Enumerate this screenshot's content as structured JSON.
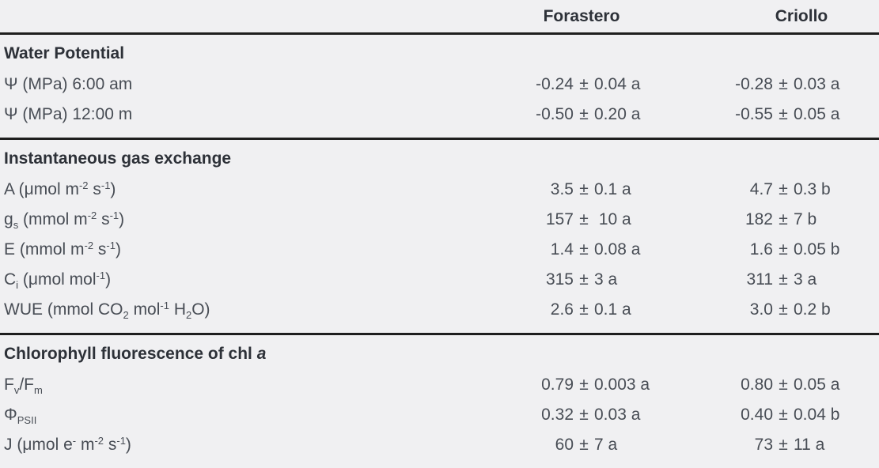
{
  "meta": {
    "pm": "±"
  },
  "colors": {
    "background": "#f0f0f2",
    "text": "#484d55",
    "heading": "#2d3138",
    "rule": "#1e1e1e"
  },
  "table": {
    "columns": [
      "",
      "Forastero",
      "Criollo"
    ],
    "sections": [
      {
        "title": [
          {
            "t": "Water Potential"
          }
        ],
        "rows": [
          {
            "label": [
              {
                "t": "Ψ (MPa) 6:00 am"
              }
            ],
            "forastero": {
              "n": "-0.24",
              "r": "0.04 a"
            },
            "criollo": {
              "n": "-0.28",
              "r": "0.03 a"
            }
          },
          {
            "label": [
              {
                "t": "Ψ (MPa) 12:00 m"
              }
            ],
            "forastero": {
              "n": "-0.50",
              "r": "0.20 a"
            },
            "criollo": {
              "n": "-0.55",
              "r": "0.05 a"
            }
          }
        ]
      },
      {
        "title": [
          {
            "t": "Instantaneous gas exchange"
          }
        ],
        "rows": [
          {
            "label": [
              {
                "t": "A (μmol m"
              },
              {
                "t": "-2",
                "s": "sup"
              },
              {
                "t": " s"
              },
              {
                "t": "-1",
                "s": "sup"
              },
              {
                "t": ")"
              }
            ],
            "forastero": {
              "n": "3.5",
              "r": "0.1 a"
            },
            "criollo": {
              "n": "4.7",
              "r": "0.3 b"
            }
          },
          {
            "label": [
              {
                "t": "g"
              },
              {
                "t": "s",
                "s": "sub"
              },
              {
                "t": " (mmol m"
              },
              {
                "t": "-2",
                "s": "sup"
              },
              {
                "t": " s"
              },
              {
                "t": "-1",
                "s": "sup"
              },
              {
                "t": ")"
              }
            ],
            "forastero": {
              "n": "157",
              "r": " 10 a"
            },
            "criollo": {
              "n": "182",
              "r": "7 b"
            }
          },
          {
            "label": [
              {
                "t": "E (mmol m"
              },
              {
                "t": "-2",
                "s": "sup"
              },
              {
                "t": " s"
              },
              {
                "t": "-1",
                "s": "sup"
              },
              {
                "t": ")"
              }
            ],
            "forastero": {
              "n": "1.4",
              "r": "0.08 a"
            },
            "criollo": {
              "n": "1.6",
              "r": "0.05 b"
            }
          },
          {
            "label": [
              {
                "t": "C"
              },
              {
                "t": "i",
                "s": "sub"
              },
              {
                "t": " (μmol mol"
              },
              {
                "t": "-1",
                "s": "sup"
              },
              {
                "t": ")"
              }
            ],
            "forastero": {
              "n": "315",
              "r": "3 a"
            },
            "criollo": {
              "n": "311",
              "r": "3 a"
            }
          },
          {
            "label": [
              {
                "t": "WUE (mmol CO"
              },
              {
                "t": "2",
                "s": "sub"
              },
              {
                "t": " mol"
              },
              {
                "t": "-1",
                "s": "sup"
              },
              {
                "t": " H"
              },
              {
                "t": "2",
                "s": "sub"
              },
              {
                "t": "O)"
              }
            ],
            "forastero": {
              "n": "2.6",
              "r": "0.1 a"
            },
            "criollo": {
              "n": "3.0",
              "r": "0.2 b"
            }
          }
        ]
      },
      {
        "title": [
          {
            "t": "Chlorophyll fluorescence of chl "
          },
          {
            "t": "a",
            "s": "i"
          }
        ],
        "rows": [
          {
            "label": [
              {
                "t": "F"
              },
              {
                "t": "v",
                "s": "sub"
              },
              {
                "t": "/F"
              },
              {
                "t": "m",
                "s": "sub"
              }
            ],
            "forastero": {
              "n": "0.79",
              "r": "0.003 a"
            },
            "criollo": {
              "n": "0.80",
              "r": "0.05 a"
            }
          },
          {
            "label": [
              {
                "t": "Φ"
              },
              {
                "t": "PSII",
                "s": "sub"
              }
            ],
            "forastero": {
              "n": "0.32",
              "r": "0.03 a"
            },
            "criollo": {
              "n": "0.40",
              "r": "0.04 b"
            }
          },
          {
            "label": [
              {
                "t": "J (μmol e"
              },
              {
                "t": "-",
                "s": "sup"
              },
              {
                "t": " m"
              },
              {
                "t": "-2",
                "s": "sup"
              },
              {
                "t": " s"
              },
              {
                "t": "-1",
                "s": "sup"
              },
              {
                "t": ")"
              }
            ],
            "forastero": {
              "n": "60",
              "r": "7 a"
            },
            "criollo": {
              "n": "73",
              "r": "11 a"
            }
          }
        ]
      }
    ]
  }
}
